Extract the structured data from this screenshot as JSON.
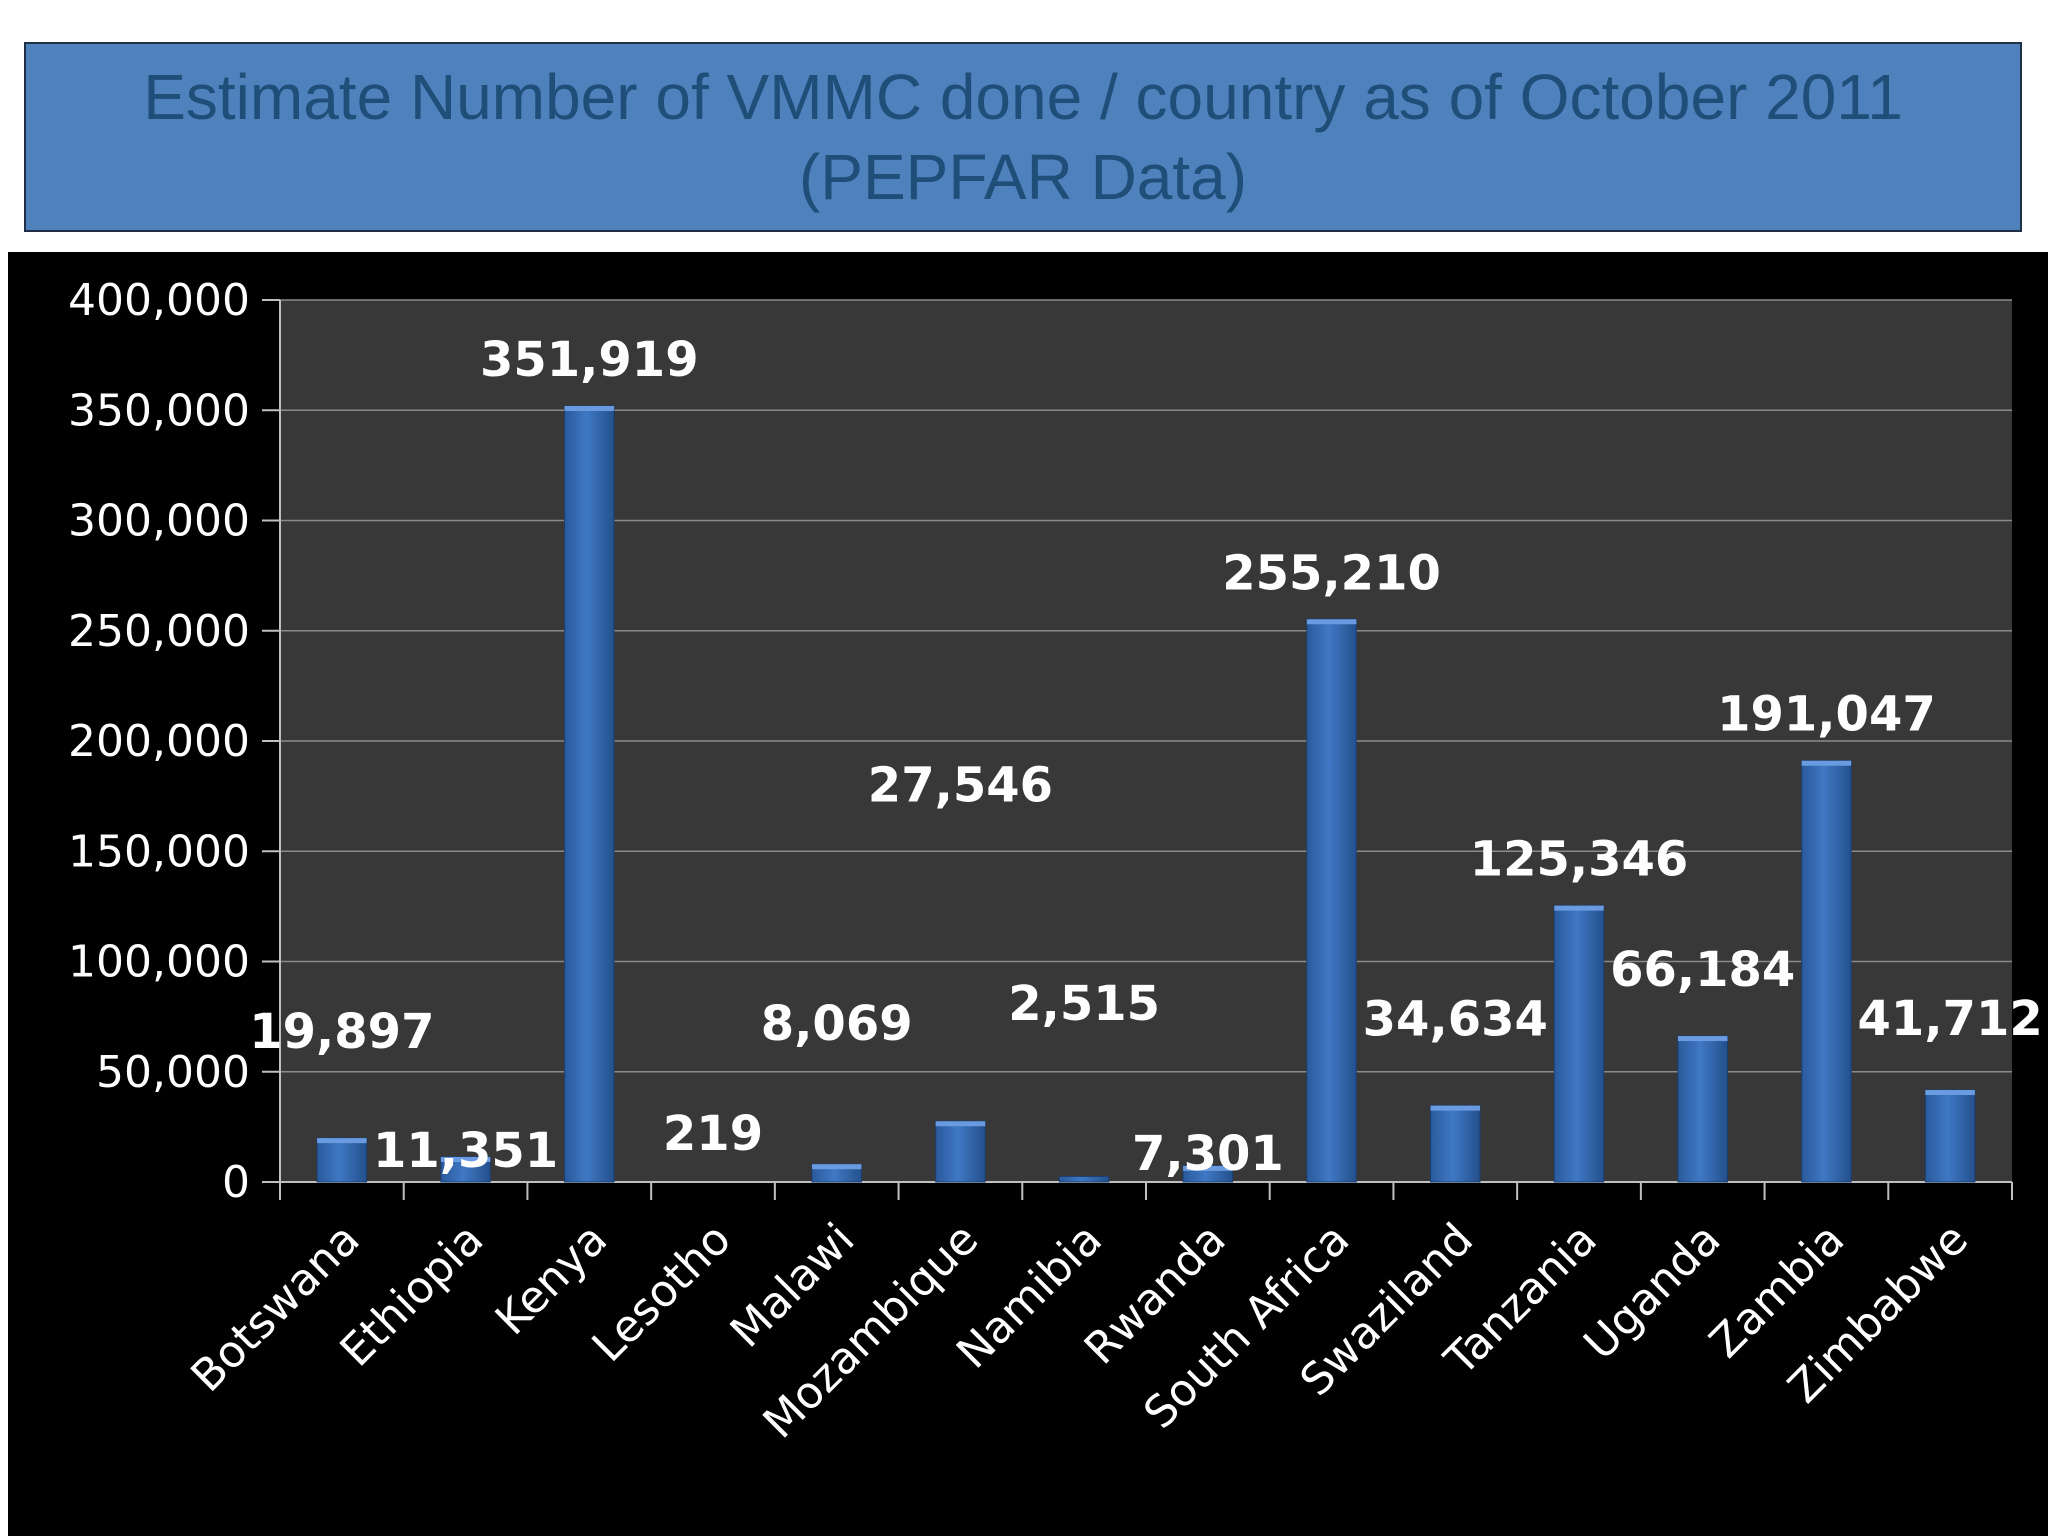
{
  "chart_data": {
    "type": "bar",
    "title": "Estimate Number of VMMC done / country as of October 2011 (PEPFAR Data)",
    "categories": [
      "Botswana",
      "Ethiopia",
      "Kenya",
      "Lesotho",
      "Malawi",
      "Mozambique",
      "Namibia",
      "Rwanda",
      "South Africa",
      "Swaziland",
      "Tanzania",
      "Uganda",
      "Zambia",
      "Zimbabwe"
    ],
    "values": [
      19897,
      11351,
      351919,
      219,
      8069,
      27546,
      2515,
      7301,
      255210,
      34634,
      125346,
      66184,
      191047,
      41712
    ],
    "data_labels": [
      "19,897",
      "11,351",
      "351,919",
      "219",
      "8,069",
      "27,546",
      "2,515",
      "7,301",
      "255,210",
      "34,634",
      "125,346",
      "66,184",
      "191,047",
      "41,712"
    ],
    "y_ticks": [
      "0",
      "50,000",
      "100,000",
      "150,000",
      "200,000",
      "250,000",
      "300,000",
      "350,000",
      "400,000"
    ],
    "ylim": [
      0,
      400000
    ],
    "xlabel": "",
    "ylabel": "",
    "grid": true,
    "legend": "none",
    "colors": {
      "bar": "#3f78c4",
      "plot_background": "#383838",
      "panel_background": "#000000",
      "title_box": "#4f81bd",
      "title_text": "#1f4e79"
    }
  }
}
